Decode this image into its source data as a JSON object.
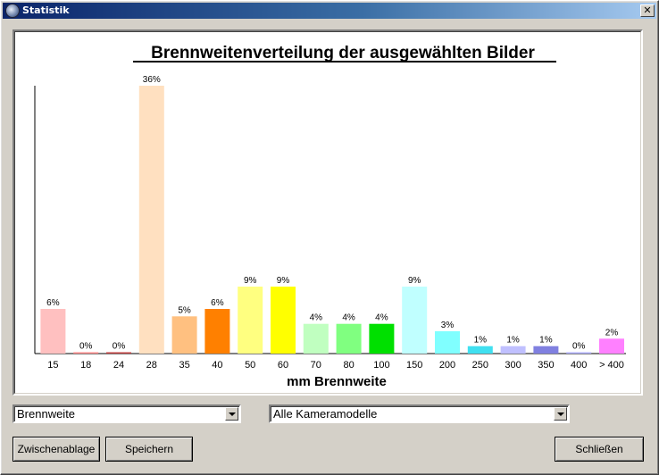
{
  "window": {
    "title": "Statistik",
    "icon": "camera-lens-icon",
    "close_glyph": "✕"
  },
  "chart_data": {
    "type": "bar",
    "title": "Brennweitenverteilung der ausgewählten Bilder",
    "xlabel": "mm Brennweite",
    "ylabel": "",
    "ylim": [
      0,
      36
    ],
    "grid": false,
    "categories": [
      "15",
      "18",
      "24",
      "28",
      "35",
      "40",
      "50",
      "60",
      "70",
      "80",
      "100",
      "150",
      "200",
      "250",
      "300",
      "350",
      "400",
      "> 400"
    ],
    "values": [
      6,
      0,
      0,
      36,
      5,
      6,
      9,
      9,
      4,
      4,
      4,
      9,
      3,
      1,
      1,
      1,
      0,
      2
    ],
    "value_labels": [
      "6%",
      "0%",
      "0%",
      "36%",
      "5%",
      "6%",
      "9%",
      "9%",
      "4%",
      "4%",
      "4%",
      "9%",
      "3%",
      "1%",
      "1%",
      "1%",
      "0%",
      "2%"
    ],
    "colors": [
      "#ffc0c0",
      "#ff8a8a",
      "#c04040",
      "#ffe0c0",
      "#ffc080",
      "#ff8000",
      "#ffff80",
      "#ffff00",
      "#c0ffc0",
      "#80ff80",
      "#00e000",
      "#c0ffff",
      "#80ffff",
      "#40e0f0",
      "#c0c0ff",
      "#8080e0",
      "#b0b0ff",
      "#ff80ff"
    ]
  },
  "controls": {
    "metric_select": "Brennweite",
    "camera_select": "Alle Kameramodelle",
    "clipboard_button": "Zwischenablage",
    "save_button": "Speichern",
    "close_button": "Schließen"
  }
}
